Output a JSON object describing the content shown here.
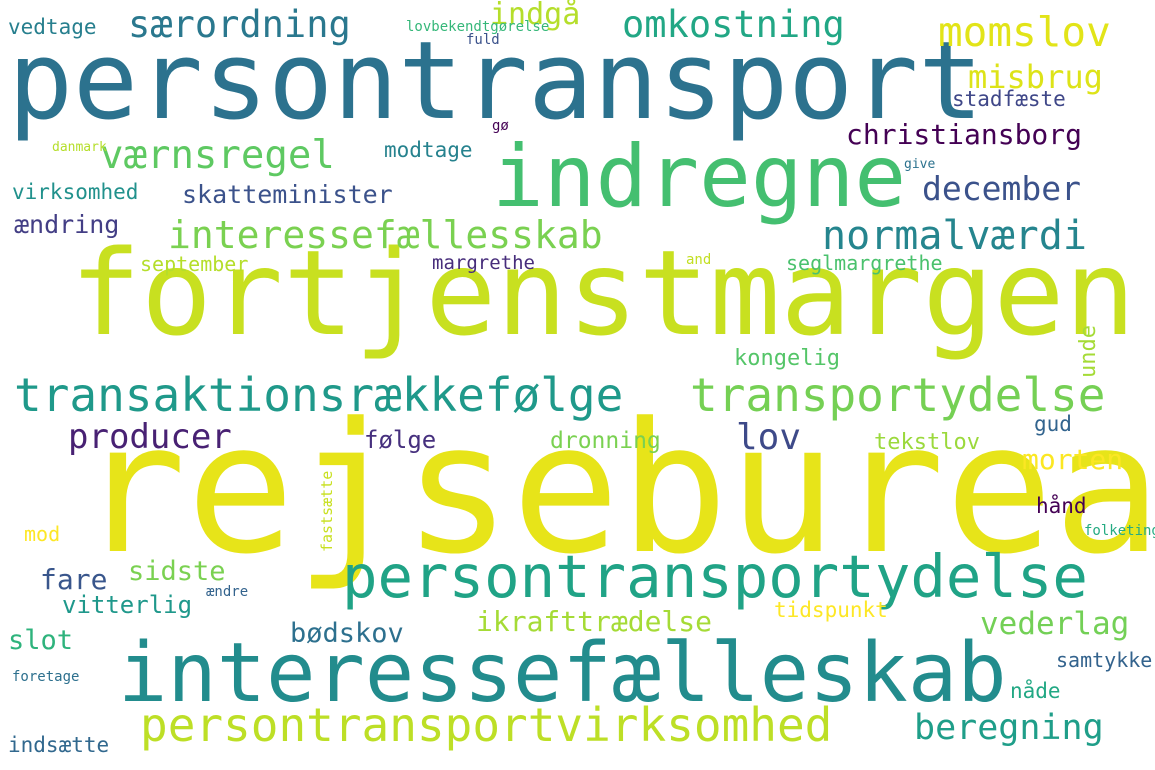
{
  "words": [
    {
      "text": "persontransport",
      "color": "#2c728e"
    },
    {
      "text": "fortjenstmargen",
      "color": "#c8e020"
    },
    {
      "text": "rejsebureau",
      "color": "#e7e419"
    },
    {
      "text": "interessefælleskab",
      "color": "#228c8d"
    },
    {
      "text": "indregne",
      "color": "#44bf70"
    },
    {
      "text": "persontransportydelse",
      "color": "#20a386"
    },
    {
      "text": "persontransportvirksomhed",
      "color": "#bddf26"
    },
    {
      "text": "transaktionsrækkefølge",
      "color": "#1f998a"
    },
    {
      "text": "transportydelse",
      "color": "#75d054"
    },
    {
      "text": "interessefællesskab",
      "color": "#7ad151"
    },
    {
      "text": "særordning",
      "color": "#2a788e"
    },
    {
      "text": "omkostning",
      "color": "#22a785"
    },
    {
      "text": "momslov",
      "color": "#e2e418"
    },
    {
      "text": "værnsregel",
      "color": "#5ec962"
    },
    {
      "text": "normalværdi",
      "color": "#25858e"
    },
    {
      "text": "christiansborg",
      "color": "#440154"
    },
    {
      "text": "december",
      "color": "#3b528b"
    },
    {
      "text": "misbrug",
      "color": "#dde318"
    },
    {
      "text": "indgå",
      "color": "#b5de2b"
    },
    {
      "text": "producer",
      "color": "#482173"
    },
    {
      "text": "lov",
      "color": "#3e4a89"
    },
    {
      "text": "beregning",
      "color": "#1f9e89"
    },
    {
      "text": "vederlag",
      "color": "#73d056"
    },
    {
      "text": "morten",
      "color": "#fbe723"
    },
    {
      "text": "skatteminister",
      "color": "#3b528b"
    },
    {
      "text": "ændring",
      "color": "#433e85"
    },
    {
      "text": "virksomhed",
      "color": "#21918c"
    },
    {
      "text": "vedtage",
      "color": "#277f8e"
    },
    {
      "text": "stadfæste",
      "color": "#3f4788"
    },
    {
      "text": "bødskov",
      "color": "#2d708e"
    },
    {
      "text": "ikrafttrædelse",
      "color": "#a5db36"
    },
    {
      "text": "fare",
      "color": "#39568c"
    },
    {
      "text": "sidste",
      "color": "#7ad151"
    },
    {
      "text": "slot",
      "color": "#2eb37c"
    },
    {
      "text": "vitterlig",
      "color": "#1f988b"
    },
    {
      "text": "tidspunkt",
      "color": "#fde725"
    },
    {
      "text": "følge",
      "color": "#46307e"
    },
    {
      "text": "dronning",
      "color": "#7ad151"
    },
    {
      "text": "tekstlov",
      "color": "#9bd93c"
    },
    {
      "text": "gud",
      "color": "#32648e"
    },
    {
      "text": "hånd",
      "color": "#440154"
    },
    {
      "text": "margrethe",
      "color": "#472d7b"
    },
    {
      "text": "seglmargrethe",
      "color": "#4ac16d"
    },
    {
      "text": "september",
      "color": "#b5de2b"
    },
    {
      "text": "kongelig",
      "color": "#54c568"
    },
    {
      "text": "samtykke",
      "color": "#33638d"
    },
    {
      "text": "nåde",
      "color": "#22a884"
    },
    {
      "text": "indsætte",
      "color": "#31688e"
    },
    {
      "text": "modtage",
      "color": "#26828e"
    },
    {
      "text": "mod",
      "color": "#fde725"
    },
    {
      "text": "gø",
      "color": "#440154"
    },
    {
      "text": "lovbekendtgørelse",
      "color": "#35b779"
    },
    {
      "text": "fuld",
      "color": "#3b528b"
    },
    {
      "text": "danmark",
      "color": "#b5de2b"
    },
    {
      "text": "give",
      "color": "#2c728e"
    },
    {
      "text": "and",
      "color": "#c2df23"
    },
    {
      "text": "ændre",
      "color": "#33638d"
    },
    {
      "text": "folketing",
      "color": "#25ab82"
    },
    {
      "text": "foretage",
      "color": "#2d708e"
    },
    {
      "text": "unde",
      "color": "#a5db36"
    },
    {
      "text": "fastsætte",
      "color": "#c8e020"
    }
  ]
}
